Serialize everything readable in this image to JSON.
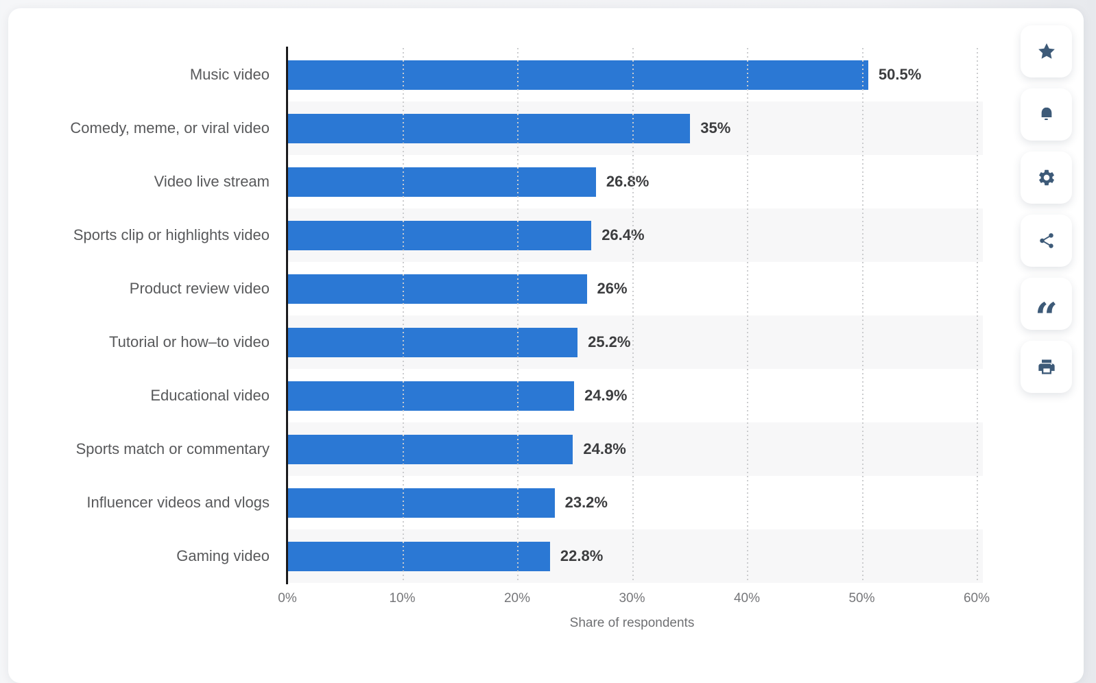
{
  "chart_data": {
    "type": "bar",
    "orientation": "horizontal",
    "categories": [
      "Music video",
      "Comedy, meme, or viral video",
      "Video live stream",
      "Sports clip or highlights video",
      "Product review video",
      "Tutorial or how–to video",
      "Educational video",
      "Sports match or commentary",
      "Influencer videos and vlogs",
      "Gaming video"
    ],
    "values": [
      50.5,
      35,
      26.8,
      26.4,
      26,
      25.2,
      24.9,
      24.8,
      23.2,
      22.8
    ],
    "value_labels": [
      "50.5%",
      "35%",
      "26.8%",
      "26.4%",
      "26%",
      "25.2%",
      "24.9%",
      "24.8%",
      "23.2%",
      "22.8%"
    ],
    "xlabel": "Share of respondents",
    "ylabel": "",
    "xlim": [
      0,
      60
    ],
    "x_ticks": [
      "0%",
      "10%",
      "20%",
      "30%",
      "40%",
      "50%",
      "60%"
    ],
    "grid": "vertical-dotted",
    "legend": "none",
    "bar_color": "#2b78d4",
    "row_stripe_color": "#f7f7f8"
  },
  "toolbar": {
    "buttons": [
      {
        "name": "favorite",
        "icon": "star-icon"
      },
      {
        "name": "notifications",
        "icon": "bell-icon"
      },
      {
        "name": "settings",
        "icon": "gear-icon"
      },
      {
        "name": "share",
        "icon": "share-icon"
      },
      {
        "name": "cite",
        "icon": "quote-icon"
      },
      {
        "name": "print",
        "icon": "printer-icon"
      }
    ],
    "quote_glyph": "“"
  },
  "colors": {
    "axis": "#1a1a1c",
    "grid": "#cbccce",
    "tick_label": "#757679",
    "category_label": "#58595b",
    "value_label": "#3c3d3f",
    "icon": "#3d5a78",
    "card": "#ffffff",
    "page": "#eff0f3"
  }
}
